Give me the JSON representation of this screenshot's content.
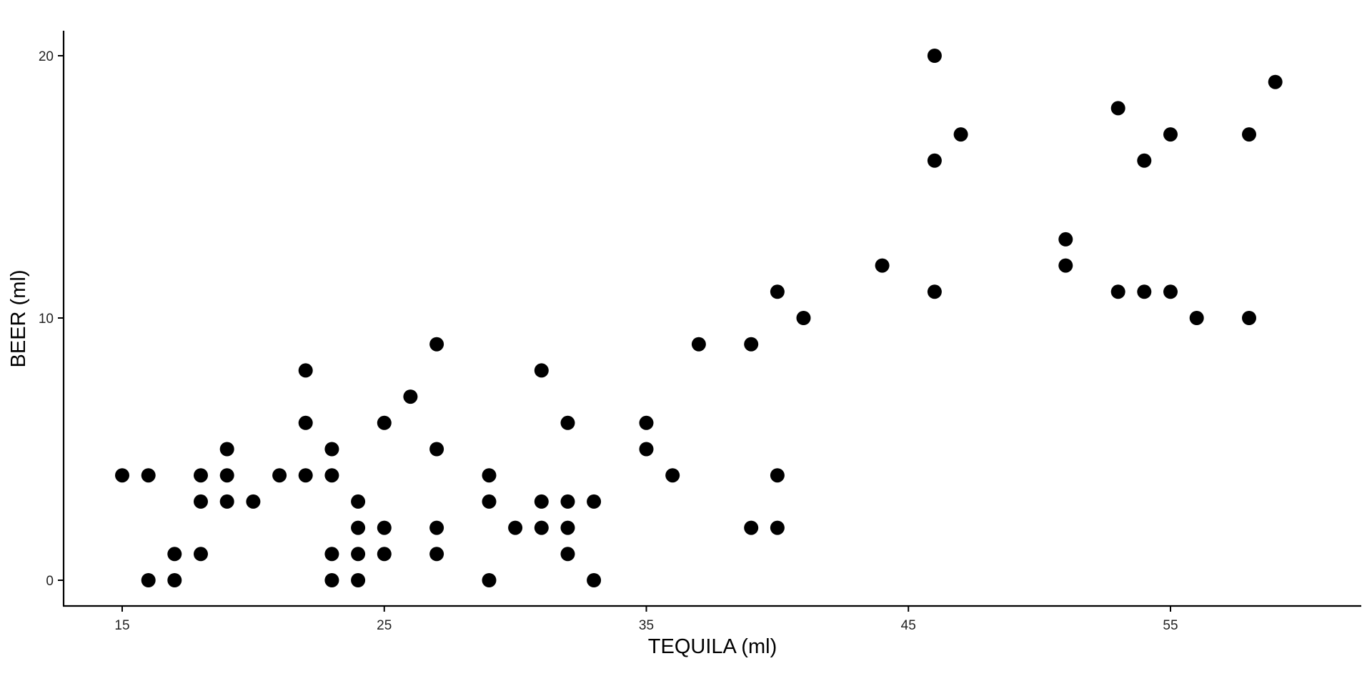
{
  "chart_data": {
    "type": "scatter",
    "title": "",
    "xlabel": "TEQUILA (ml)",
    "ylabel": "BEER (ml)",
    "xlim": [
      12.8,
      62.2
    ],
    "ylim": [
      -1,
      21
    ],
    "xticks": [
      15,
      25,
      35,
      45,
      55
    ],
    "xtick_labels": [
      "15",
      "25",
      "35",
      "45",
      "55"
    ],
    "yticks": [
      0,
      10,
      20
    ],
    "ytick_labels": [
      "0",
      "10",
      "20"
    ],
    "grid": false,
    "legend": "none",
    "point_color": "#000000",
    "points": [
      {
        "x": 15,
        "y": 4
      },
      {
        "x": 16,
        "y": 4
      },
      {
        "x": 16,
        "y": 0
      },
      {
        "x": 17,
        "y": 1
      },
      {
        "x": 17,
        "y": 0
      },
      {
        "x": 18,
        "y": 4
      },
      {
        "x": 18,
        "y": 3
      },
      {
        "x": 18,
        "y": 1
      },
      {
        "x": 19,
        "y": 5
      },
      {
        "x": 19,
        "y": 4
      },
      {
        "x": 19,
        "y": 3
      },
      {
        "x": 20,
        "y": 3
      },
      {
        "x": 21,
        "y": 4
      },
      {
        "x": 22,
        "y": 8
      },
      {
        "x": 22,
        "y": 6
      },
      {
        "x": 22,
        "y": 4
      },
      {
        "x": 23,
        "y": 5
      },
      {
        "x": 23,
        "y": 4
      },
      {
        "x": 23,
        "y": 1
      },
      {
        "x": 23,
        "y": 0
      },
      {
        "x": 24,
        "y": 3
      },
      {
        "x": 24,
        "y": 2
      },
      {
        "x": 24,
        "y": 1
      },
      {
        "x": 24,
        "y": 0
      },
      {
        "x": 25,
        "y": 6
      },
      {
        "x": 25,
        "y": 2
      },
      {
        "x": 25,
        "y": 1
      },
      {
        "x": 26,
        "y": 7
      },
      {
        "x": 27,
        "y": 9
      },
      {
        "x": 27,
        "y": 5
      },
      {
        "x": 27,
        "y": 2
      },
      {
        "x": 27,
        "y": 1
      },
      {
        "x": 29,
        "y": 4
      },
      {
        "x": 29,
        "y": 3
      },
      {
        "x": 29,
        "y": 0
      },
      {
        "x": 30,
        "y": 2
      },
      {
        "x": 31,
        "y": 8
      },
      {
        "x": 31,
        "y": 3
      },
      {
        "x": 31,
        "y": 2
      },
      {
        "x": 32,
        "y": 6
      },
      {
        "x": 32,
        "y": 3
      },
      {
        "x": 32,
        "y": 2
      },
      {
        "x": 32,
        "y": 1
      },
      {
        "x": 33,
        "y": 3
      },
      {
        "x": 33,
        "y": 0
      },
      {
        "x": 35,
        "y": 6
      },
      {
        "x": 35,
        "y": 5
      },
      {
        "x": 36,
        "y": 4
      },
      {
        "x": 37,
        "y": 9
      },
      {
        "x": 39,
        "y": 9
      },
      {
        "x": 39,
        "y": 2
      },
      {
        "x": 40,
        "y": 11
      },
      {
        "x": 40,
        "y": 4
      },
      {
        "x": 40,
        "y": 2
      },
      {
        "x": 41,
        "y": 10
      },
      {
        "x": 44,
        "y": 12
      },
      {
        "x": 46,
        "y": 20
      },
      {
        "x": 46,
        "y": 16
      },
      {
        "x": 46,
        "y": 11
      },
      {
        "x": 47,
        "y": 17
      },
      {
        "x": 51,
        "y": 13
      },
      {
        "x": 51,
        "y": 12
      },
      {
        "x": 53,
        "y": 18
      },
      {
        "x": 53,
        "y": 11
      },
      {
        "x": 54,
        "y": 16
      },
      {
        "x": 54,
        "y": 11
      },
      {
        "x": 55,
        "y": 17
      },
      {
        "x": 55,
        "y": 11
      },
      {
        "x": 56,
        "y": 10
      },
      {
        "x": 58,
        "y": 17
      },
      {
        "x": 58,
        "y": 10
      },
      {
        "x": 59,
        "y": 19
      }
    ]
  }
}
